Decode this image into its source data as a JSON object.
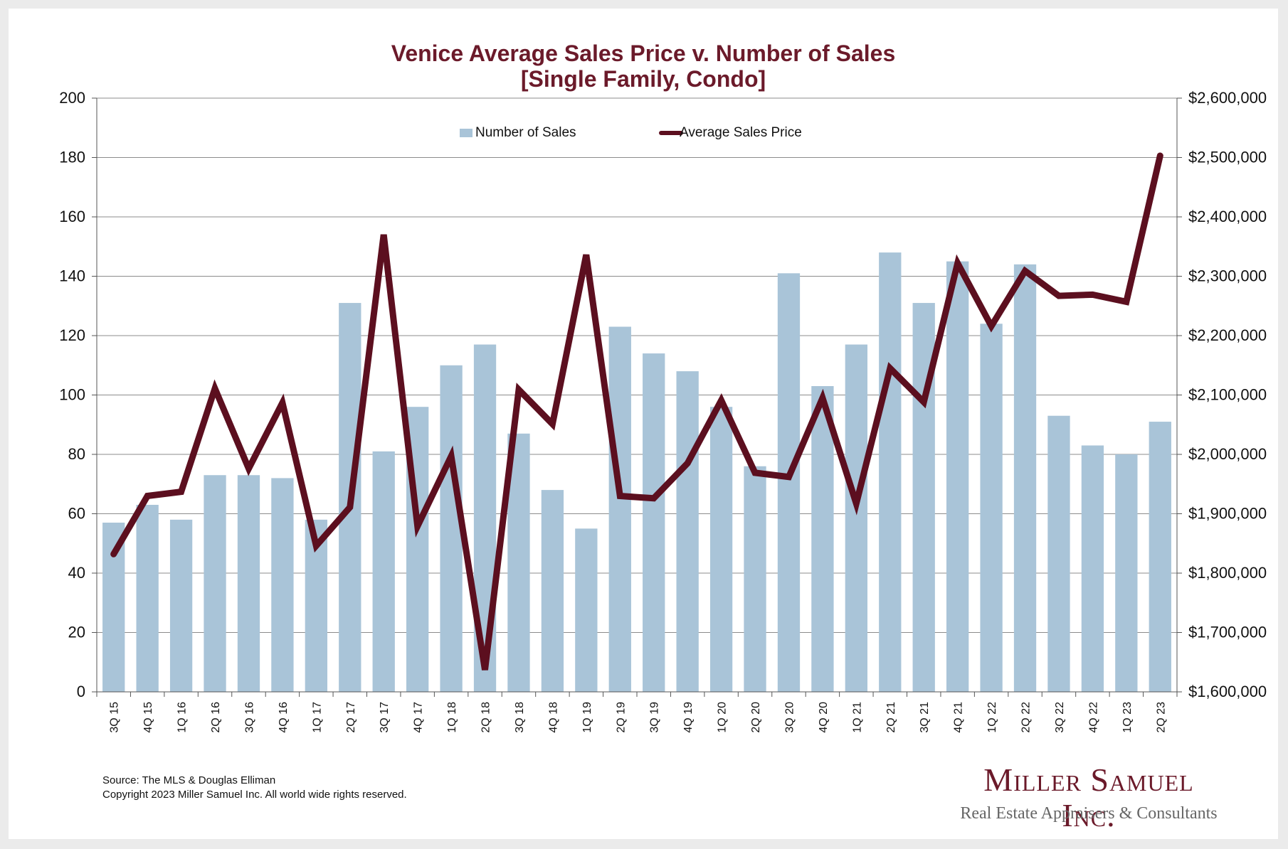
{
  "chart_data": {
    "type": "bar",
    "title_line1": "Venice Average Sales Price v. Number of Sales",
    "title_line2": "[Single Family, Condo]",
    "categories": [
      "3Q 15",
      "4Q 15",
      "1Q 16",
      "2Q 16",
      "3Q 16",
      "4Q 16",
      "1Q 17",
      "2Q 17",
      "3Q 17",
      "4Q 17",
      "1Q 18",
      "2Q 18",
      "3Q 18",
      "4Q 18",
      "1Q 19",
      "2Q 19",
      "3Q 19",
      "4Q 19",
      "1Q 20",
      "2Q 20",
      "3Q 20",
      "4Q 20",
      "1Q 21",
      "2Q 21",
      "3Q 21",
      "4Q 21",
      "1Q 22",
      "2Q 22",
      "3Q 22",
      "4Q 22",
      "1Q 23",
      "2Q 23"
    ],
    "series": [
      {
        "name": "Number of Sales",
        "type": "bar",
        "axis": "left",
        "color": "#a9c4d8",
        "values": [
          57,
          63,
          58,
          73,
          73,
          72,
          58,
          131,
          81,
          96,
          110,
          117,
          87,
          68,
          55,
          123,
          114,
          108,
          96,
          76,
          141,
          103,
          117,
          148,
          131,
          145,
          124,
          144,
          93,
          83,
          80,
          91
        ]
      },
      {
        "name": "Average Sales Price",
        "type": "line",
        "axis": "right",
        "color": "#5c0f1f",
        "values": [
          1832000,
          1930000,
          1937000,
          2111000,
          1976000,
          2087000,
          1846000,
          1911000,
          2370000,
          1879000,
          1997000,
          1637000,
          2109000,
          2051000,
          2336000,
          1930000,
          1926000,
          1985000,
          2091000,
          1969000,
          1962000,
          2095000,
          1917000,
          2145000,
          2088000,
          2322000,
          2216000,
          2309000,
          2267000,
          2269000,
          2257000,
          2503000
        ]
      }
    ],
    "ylim_left": [
      0,
      200
    ],
    "yticks_left": [
      0,
      20,
      40,
      60,
      80,
      100,
      120,
      140,
      160,
      180,
      200
    ],
    "ylim_right": [
      1600000,
      2600000
    ],
    "yticks_right_labels": [
      "$1,600,000",
      "$1,700,000",
      "$1,800,000",
      "$1,900,000",
      "$2,000,000",
      "$2,100,000",
      "$2,200,000",
      "$2,300,000",
      "$2,400,000",
      "$2,500,000",
      "$2,600,000"
    ],
    "grid": true,
    "legend_position": "top-center"
  },
  "source_line": "Source: The MLS & Douglas Elliman",
  "copyright_line": "Copyright 2023 Miller Samuel Inc.  All world wide rights reserved.",
  "logo": {
    "main": "Miller Samuel Inc.",
    "sub": "Real Estate Appraisers & Consultants"
  }
}
